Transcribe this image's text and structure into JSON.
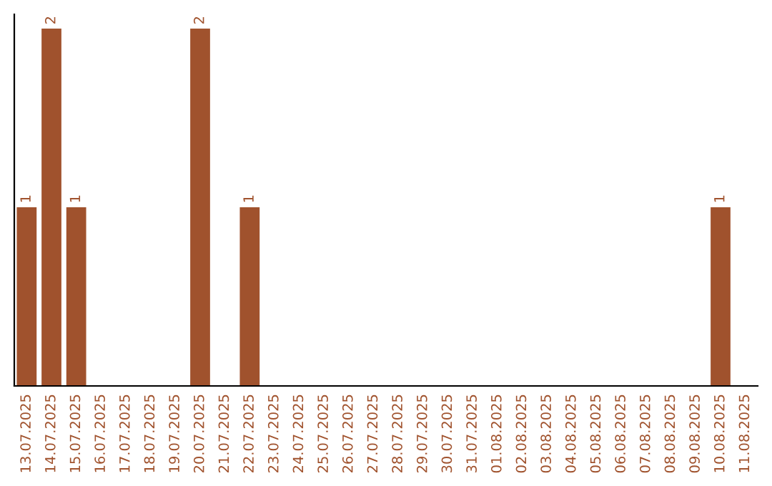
{
  "chart_data": {
    "type": "bar",
    "categories": [
      "13.07.2025",
      "14.07.2025",
      "15.07.2025",
      "16.07.2025",
      "17.07.2025",
      "18.07.2025",
      "19.07.2025",
      "20.07.2025",
      "21.07.2025",
      "22.07.2025",
      "23.07.2025",
      "24.07.2025",
      "25.07.2025",
      "26.07.2025",
      "27.07.2025",
      "28.07.2025",
      "29.07.2025",
      "30.07.2025",
      "31.07.2025",
      "01.08.2025",
      "02.08.2025",
      "03.08.2025",
      "04.08.2025",
      "05.08.2025",
      "06.08.2025",
      "07.08.2025",
      "08.08.2025",
      "09.08.2025",
      "10.08.2025",
      "11.08.2025"
    ],
    "values": [
      1,
      2,
      1,
      0,
      0,
      0,
      0,
      2,
      0,
      1,
      0,
      0,
      0,
      0,
      0,
      0,
      0,
      0,
      0,
      0,
      0,
      0,
      0,
      0,
      0,
      0,
      0,
      0,
      1,
      0
    ],
    "value_labels": [
      "1",
      "2",
      "1",
      null,
      null,
      null,
      null,
      "2",
      null,
      "1",
      null,
      null,
      null,
      null,
      null,
      null,
      null,
      null,
      null,
      null,
      null,
      null,
      null,
      null,
      null,
      null,
      null,
      null,
      "1",
      null
    ],
    "color": "#a0522d",
    "tick_labels": "x",
    "grid": false,
    "legend": false
  }
}
